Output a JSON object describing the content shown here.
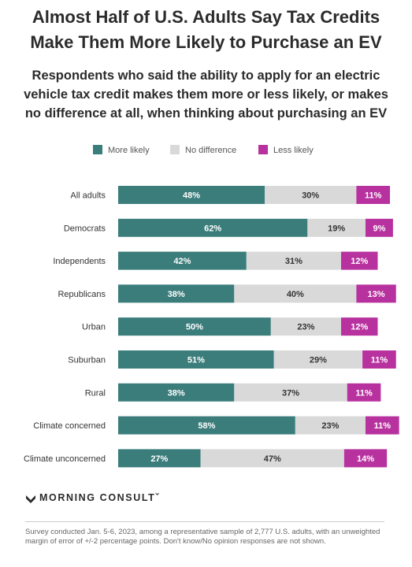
{
  "title_lines": [
    "Almost Half of U.S. Adults Say Tax Credits",
    "Make Them More Likely to Purchase an EV"
  ],
  "subtitle_lines": [
    "Respondents who said the ability to apply for an electric",
    "vehicle tax credit makes them more or less likely, or makes",
    "no difference at all, when thinking about purchasing an EV"
  ],
  "colors": {
    "more": "#3a7d7b",
    "none": "#d9d9d9",
    "less": "#b8329f"
  },
  "chart_data": {
    "type": "bar",
    "orientation": "horizontal",
    "stacked": true,
    "categories": [
      "All adults",
      "Democrats",
      "Independents",
      "Republicans",
      "Urban",
      "Suburban",
      "Rural",
      "Climate concerned",
      "Climate unconcerned"
    ],
    "series": [
      {
        "name": "More likely",
        "values": [
          48,
          62,
          42,
          38,
          50,
          51,
          38,
          58,
          27
        ]
      },
      {
        "name": "No difference",
        "values": [
          30,
          19,
          31,
          40,
          23,
          29,
          37,
          23,
          47
        ]
      },
      {
        "name": "Less likely",
        "values": [
          11,
          9,
          12,
          13,
          12,
          11,
          11,
          11,
          14
        ]
      }
    ],
    "value_suffix": "%",
    "legend_position": "top",
    "grid": false,
    "xlim": [
      0,
      89
    ]
  },
  "brand": "MORNING CONSULT",
  "brand_mark": "ˇ",
  "footnote": "Survey conducted Jan. 5-6, 2023, among a representative sample of 2,777 U.S. adults, with an unweighted margin of error of +/-2 percentage points. Don't know/No opinion responses are not shown."
}
